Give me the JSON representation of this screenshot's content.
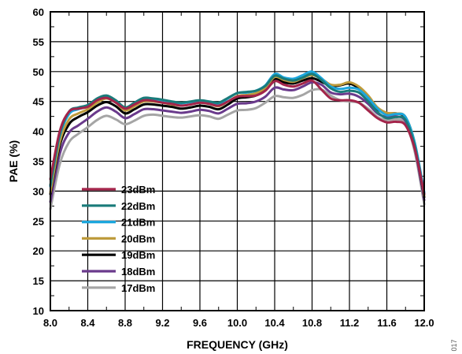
{
  "figure_id": "017",
  "chart_data": {
    "type": "line",
    "title": "",
    "xlabel": "FREQUENCY (GHz)",
    "ylabel": "PAE (%)",
    "xlim": [
      8.0,
      12.0
    ],
    "ylim": [
      10,
      60
    ],
    "xticks": [
      8.0,
      8.4,
      8.8,
      9.2,
      9.6,
      10.0,
      10.4,
      10.8,
      11.2,
      11.6,
      12.0
    ],
    "xtick_labels": [
      "8.0",
      "8.4",
      "8.8",
      "9.2",
      "9.6",
      "10.0",
      "10.4",
      "10.8",
      "11.2",
      "11.6",
      "12.0"
    ],
    "yticks": [
      10,
      15,
      20,
      25,
      30,
      35,
      40,
      45,
      50,
      55,
      60
    ],
    "yminor": [
      12.5,
      17.5,
      22.5,
      27.5,
      32.5,
      37.5,
      42.5,
      47.5,
      52.5,
      57.5
    ],
    "grid": true,
    "legend_position": "lower-left",
    "x": [
      8.0,
      8.1,
      8.2,
      8.3,
      8.4,
      8.5,
      8.6,
      8.7,
      8.8,
      8.9,
      9.0,
      9.1,
      9.2,
      9.3,
      9.4,
      9.5,
      9.6,
      9.7,
      9.8,
      9.9,
      10.0,
      10.1,
      10.2,
      10.3,
      10.4,
      10.5,
      10.6,
      10.7,
      10.8,
      10.9,
      11.0,
      11.1,
      11.2,
      11.3,
      11.4,
      11.5,
      11.6,
      11.7,
      11.8,
      11.9,
      12.0
    ],
    "series": [
      {
        "name": "23dBm",
        "color": "#A3244A",
        "values": [
          32,
          40,
          43.3,
          43.8,
          44.1,
          45.2,
          45.6,
          44.8,
          43.8,
          44.5,
          45.2,
          45.1,
          44.8,
          44.6,
          44.3,
          44.5,
          44.8,
          44.6,
          44.3,
          45.0,
          45.8,
          45.9,
          46.0,
          46.8,
          48.4,
          47.8,
          47.5,
          48.0,
          48.5,
          47.0,
          45.5,
          45.2,
          45.2,
          44.8,
          43.5,
          42.2,
          41.5,
          41.6,
          41.0,
          37,
          29.5
        ]
      },
      {
        "name": "22dBm",
        "color": "#1A7B7A",
        "values": [
          31,
          39.5,
          43.3,
          44.0,
          44.4,
          45.5,
          46.0,
          45.2,
          44.0,
          44.8,
          45.6,
          45.5,
          45.3,
          45.0,
          44.8,
          45.0,
          45.2,
          45.0,
          44.8,
          45.6,
          46.4,
          46.6,
          46.8,
          47.6,
          49.3,
          48.8,
          48.5,
          49.0,
          49.6,
          48.6,
          47.2,
          46.6,
          46.8,
          46.5,
          45.0,
          43.2,
          42.2,
          42.4,
          41.9,
          37.5,
          29.5
        ]
      },
      {
        "name": "21dBm",
        "color": "#1CA6DD",
        "values": [
          30.8,
          39.2,
          42.9,
          43.7,
          44.2,
          45.3,
          45.9,
          45.1,
          43.9,
          44.7,
          45.5,
          45.4,
          45.2,
          44.9,
          44.7,
          44.9,
          45.1,
          44.9,
          44.6,
          45.5,
          46.4,
          46.5,
          46.8,
          47.7,
          49.6,
          49.0,
          48.8,
          49.4,
          50.0,
          48.9,
          47.5,
          47.1,
          47.3,
          47.0,
          45.6,
          43.8,
          42.7,
          42.9,
          42.4,
          38,
          29.8
        ]
      },
      {
        "name": "20dBm",
        "color": "#BE9B3C",
        "values": [
          29.8,
          38.2,
          42.0,
          43.0,
          43.7,
          44.8,
          45.5,
          44.8,
          43.5,
          44.2,
          45.0,
          45.0,
          44.8,
          44.5,
          44.3,
          44.5,
          44.8,
          44.6,
          44.2,
          45.0,
          45.9,
          46.1,
          46.4,
          47.3,
          49.1,
          48.6,
          48.3,
          48.9,
          49.4,
          48.8,
          47.8,
          47.8,
          48.2,
          47.5,
          46.0,
          44.0,
          43.1,
          43.0,
          42.4,
          38,
          29.2
        ]
      },
      {
        "name": "19dBm",
        "color": "#000000",
        "values": [
          29.5,
          37.6,
          41.2,
          42.4,
          43.2,
          44.3,
          44.9,
          44.2,
          43.0,
          43.7,
          44.5,
          44.5,
          44.3,
          44.1,
          43.8,
          44.0,
          44.3,
          44.1,
          43.7,
          44.5,
          45.5,
          45.7,
          46.0,
          46.9,
          48.7,
          48.2,
          48.0,
          48.5,
          48.9,
          48.3,
          47.6,
          47.7,
          48.0,
          47.2,
          45.6,
          43.7,
          43.0,
          43.0,
          42.2,
          37.5,
          29.0
        ]
      },
      {
        "name": "18dBm",
        "color": "#6A3A8C",
        "values": [
          28.2,
          36.2,
          39.8,
          41.0,
          42.1,
          43.3,
          44.0,
          43.3,
          42.2,
          42.9,
          43.7,
          43.7,
          43.5,
          43.3,
          43.1,
          43.3,
          43.6,
          43.4,
          43.0,
          43.8,
          44.6,
          44.7,
          45.0,
          45.8,
          47.3,
          47.0,
          46.9,
          47.5,
          48.2,
          47.8,
          46.5,
          46.2,
          46.3,
          45.8,
          44.6,
          43.0,
          42.4,
          42.5,
          41.7,
          37,
          28.5
        ]
      },
      {
        "name": "17dBm",
        "color": "#A5A5A5",
        "values": [
          27.0,
          34.5,
          38.2,
          39.6,
          40.7,
          41.9,
          42.6,
          42.0,
          41.2,
          41.8,
          42.6,
          42.8,
          42.6,
          42.4,
          42.3,
          42.5,
          42.7,
          42.5,
          42.1,
          42.8,
          43.5,
          43.6,
          43.9,
          44.8,
          45.9,
          45.7,
          45.6,
          46.1,
          46.9,
          47.0,
          46.0,
          45.2,
          45.0,
          44.8,
          43.8,
          42.4,
          41.9,
          42.0,
          41.3,
          36.5,
          27.8
        ]
      }
    ]
  }
}
